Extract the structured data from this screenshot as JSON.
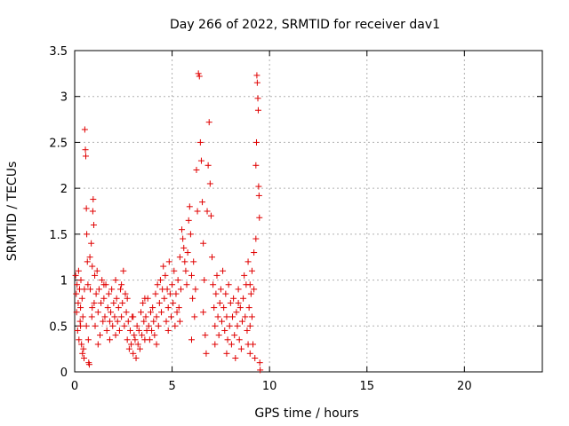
{
  "chart_data": {
    "type": "scatter",
    "title": "Day 266 of 2022, SRMTID for receiver dav1",
    "xlabel": "GPS time / hours",
    "ylabel": "SRMTID / TECUs",
    "xlim": [
      0,
      24
    ],
    "ylim": [
      0,
      3.5
    ],
    "xticks": [
      0,
      5,
      10,
      15,
      20
    ],
    "yticks": [
      0,
      0.5,
      1,
      1.5,
      2,
      2.5,
      3,
      3.5
    ],
    "xtick_labels": [
      "0",
      "5",
      "10",
      "15",
      "20"
    ],
    "ytick_labels": [
      "0",
      "0.5",
      "1",
      "1.5",
      "2",
      "2.5",
      "3",
      "3.5"
    ],
    "grid": true,
    "marker": "+",
    "color": "#e00000",
    "series": [
      {
        "name": "dav1",
        "points": [
          [
            0.05,
            1.05
          ],
          [
            0.08,
            0.85
          ],
          [
            0.1,
            0.65
          ],
          [
            0.12,
            0.95
          ],
          [
            0.15,
            0.45
          ],
          [
            0.18,
            0.75
          ],
          [
            0.2,
            1.1
          ],
          [
            0.22,
            0.35
          ],
          [
            0.25,
            0.9
          ],
          [
            0.28,
            0.55
          ],
          [
            0.3,
            0.7
          ],
          [
            0.32,
            1.0
          ],
          [
            0.35,
            0.3
          ],
          [
            0.38,
            0.8
          ],
          [
            0.4,
            0.2
          ],
          [
            0.42,
            0.6
          ],
          [
            0.45,
            0.25
          ],
          [
            0.48,
            0.15
          ],
          [
            0.5,
            0.9
          ],
          [
            0.52,
            2.64
          ],
          [
            0.55,
            2.42
          ],
          [
            0.57,
            2.35
          ],
          [
            0.6,
            1.78
          ],
          [
            0.62,
            1.5
          ],
          [
            0.65,
            1.2
          ],
          [
            0.68,
            0.95
          ],
          [
            0.7,
            0.35
          ],
          [
            0.72,
            0.1
          ],
          [
            0.75,
            0.08
          ],
          [
            0.78,
            1.25
          ],
          [
            0.8,
            0.9
          ],
          [
            0.85,
            1.4
          ],
          [
            0.88,
            0.6
          ],
          [
            0.9,
            1.15
          ],
          [
            0.93,
            1.75
          ],
          [
            0.95,
            1.88
          ],
          [
            0.98,
            1.6
          ],
          [
            1.0,
            0.75
          ],
          [
            1.03,
            1.05
          ],
          [
            1.05,
            0.5
          ],
          [
            1.1,
            0.85
          ],
          [
            1.15,
            1.1
          ],
          [
            1.2,
            0.65
          ],
          [
            1.25,
            0.9
          ],
          [
            1.3,
            0.4
          ],
          [
            1.35,
            0.75
          ],
          [
            1.4,
            1.0
          ],
          [
            1.45,
            0.55
          ],
          [
            1.5,
            0.8
          ],
          [
            1.55,
            0.6
          ],
          [
            1.6,
            0.95
          ],
          [
            1.65,
            0.45
          ],
          [
            1.7,
            0.7
          ],
          [
            1.75,
            0.85
          ],
          [
            1.8,
            0.35
          ],
          [
            1.85,
            0.65
          ],
          [
            1.9,
            0.9
          ],
          [
            1.95,
            0.5
          ],
          [
            2.0,
            0.75
          ],
          [
            2.05,
            0.6
          ],
          [
            2.1,
            0.4
          ],
          [
            2.15,
            0.8
          ],
          [
            2.2,
            0.55
          ],
          [
            2.25,
            0.7
          ],
          [
            2.3,
            0.45
          ],
          [
            2.35,
            0.9
          ],
          [
            2.4,
            0.6
          ],
          [
            2.45,
            0.75
          ],
          [
            2.5,
            1.1
          ],
          [
            2.55,
            0.5
          ],
          [
            2.6,
            0.85
          ],
          [
            2.65,
            0.65
          ],
          [
            2.7,
            0.35
          ],
          [
            2.75,
            0.55
          ],
          [
            2.8,
            0.25
          ],
          [
            2.85,
            0.45
          ],
          [
            2.9,
            0.3
          ],
          [
            2.95,
            0.6
          ],
          [
            3.0,
            0.2
          ],
          [
            3.05,
            0.4
          ],
          [
            3.1,
            0.35
          ],
          [
            3.15,
            0.15
          ],
          [
            3.2,
            0.5
          ],
          [
            3.25,
            0.3
          ],
          [
            3.3,
            0.45
          ],
          [
            3.35,
            0.25
          ],
          [
            3.4,
            0.65
          ],
          [
            3.45,
            0.4
          ],
          [
            3.5,
            0.75
          ],
          [
            3.55,
            0.55
          ],
          [
            3.6,
            0.35
          ],
          [
            3.65,
            0.6
          ],
          [
            3.7,
            0.45
          ],
          [
            3.75,
            0.8
          ],
          [
            3.8,
            0.5
          ],
          [
            3.85,
            0.35
          ],
          [
            3.9,
            0.65
          ],
          [
            3.95,
            0.45
          ],
          [
            4.0,
            0.7
          ],
          [
            4.05,
            0.55
          ],
          [
            4.1,
            0.4
          ],
          [
            4.15,
            0.85
          ],
          [
            4.2,
            0.6
          ],
          [
            4.25,
            0.95
          ],
          [
            4.3,
            0.5
          ],
          [
            4.35,
            0.75
          ],
          [
            4.4,
            1.0
          ],
          [
            4.45,
            0.65
          ],
          [
            4.5,
            0.9
          ],
          [
            4.55,
            1.15
          ],
          [
            4.6,
            0.8
          ],
          [
            4.65,
            1.05
          ],
          [
            4.7,
            0.55
          ],
          [
            4.75,
            0.9
          ],
          [
            4.8,
            0.7
          ],
          [
            4.85,
            1.2
          ],
          [
            4.9,
            0.85
          ],
          [
            4.95,
            0.6
          ],
          [
            5.0,
            0.95
          ],
          [
            5.05,
            0.75
          ],
          [
            5.1,
            1.1
          ],
          [
            5.15,
            0.5
          ],
          [
            5.2,
            0.85
          ],
          [
            5.25,
            0.65
          ],
          [
            5.3,
            1.0
          ],
          [
            5.35,
            0.7
          ],
          [
            5.4,
            1.25
          ],
          [
            5.45,
            0.9
          ],
          [
            5.5,
            1.55
          ],
          [
            5.55,
            1.45
          ],
          [
            5.6,
            1.35
          ],
          [
            5.65,
            1.2
          ],
          [
            5.7,
            1.1
          ],
          [
            5.75,
            0.95
          ],
          [
            5.8,
            1.3
          ],
          [
            5.85,
            1.65
          ],
          [
            5.9,
            1.8
          ],
          [
            5.95,
            1.5
          ],
          [
            6.0,
            1.05
          ],
          [
            6.05,
            0.8
          ],
          [
            6.1,
            1.2
          ],
          [
            6.15,
            0.6
          ],
          [
            6.2,
            0.9
          ],
          [
            6.25,
            2.2
          ],
          [
            6.3,
            1.75
          ],
          [
            6.35,
            3.25
          ],
          [
            6.4,
            3.22
          ],
          [
            6.45,
            2.5
          ],
          [
            6.5,
            2.3
          ],
          [
            6.55,
            1.85
          ],
          [
            6.6,
            1.4
          ],
          [
            6.65,
            1.0
          ],
          [
            6.7,
            0.4
          ],
          [
            6.75,
            0.2
          ],
          [
            6.8,
            1.75
          ],
          [
            6.85,
            2.25
          ],
          [
            6.9,
            2.72
          ],
          [
            6.95,
            2.05
          ],
          [
            7.0,
            1.7
          ],
          [
            7.05,
            1.25
          ],
          [
            7.1,
            0.95
          ],
          [
            7.15,
            0.7
          ],
          [
            7.2,
            0.5
          ],
          [
            7.25,
            0.85
          ],
          [
            7.3,
            1.05
          ],
          [
            7.35,
            0.6
          ],
          [
            7.4,
            0.4
          ],
          [
            7.45,
            0.75
          ],
          [
            7.5,
            0.9
          ],
          [
            7.55,
            0.55
          ],
          [
            7.6,
            1.1
          ],
          [
            7.65,
            0.7
          ],
          [
            7.7,
            0.45
          ],
          [
            7.75,
            0.85
          ],
          [
            7.8,
            0.6
          ],
          [
            7.85,
            0.35
          ],
          [
            7.9,
            0.95
          ],
          [
            7.95,
            0.5
          ],
          [
            8.0,
            0.75
          ],
          [
            8.05,
            0.3
          ],
          [
            8.1,
            0.6
          ],
          [
            8.15,
            0.8
          ],
          [
            8.2,
            0.4
          ],
          [
            8.25,
            0.15
          ],
          [
            8.3,
            0.65
          ],
          [
            8.35,
            0.5
          ],
          [
            8.4,
            0.9
          ],
          [
            8.45,
            0.35
          ],
          [
            8.5,
            0.7
          ],
          [
            8.55,
            0.25
          ],
          [
            8.6,
            0.55
          ],
          [
            8.65,
            0.8
          ],
          [
            8.7,
            1.05
          ],
          [
            8.75,
            0.6
          ],
          [
            8.8,
            0.95
          ],
          [
            8.85,
            0.45
          ],
          [
            8.9,
            1.2
          ],
          [
            8.95,
            0.7
          ],
          [
            9.0,
            0.5
          ],
          [
            9.05,
            0.85
          ],
          [
            9.1,
            1.1
          ],
          [
            9.15,
            0.3
          ],
          [
            9.2,
            0.9
          ],
          [
            9.25,
            0.15
          ],
          [
            9.3,
            2.25
          ],
          [
            9.33,
            2.5
          ],
          [
            9.35,
            3.23
          ],
          [
            9.37,
            3.15
          ],
          [
            9.4,
            2.98
          ],
          [
            9.42,
            2.85
          ],
          [
            9.44,
            2.02
          ],
          [
            9.46,
            1.92
          ],
          [
            9.48,
            1.68
          ],
          [
            9.5,
            0.1
          ],
          [
            9.52,
            0.02
          ],
          [
            9.3,
            1.45
          ],
          [
            9.2,
            1.3
          ],
          [
            9.1,
            0.6
          ],
          [
            9.0,
            0.2
          ],
          [
            8.9,
            0.3
          ],
          [
            0.6,
            0.5
          ],
          [
            1.2,
            0.3
          ],
          [
            1.8,
            0.55
          ],
          [
            2.4,
            0.95
          ],
          [
            3.0,
            0.6
          ],
          [
            3.6,
            0.8
          ],
          [
            4.2,
            0.3
          ],
          [
            4.8,
            0.45
          ],
          [
            5.4,
            0.55
          ],
          [
            6.0,
            0.35
          ],
          [
            6.6,
            0.65
          ],
          [
            7.2,
            0.3
          ],
          [
            7.8,
            0.2
          ],
          [
            8.4,
            0.75
          ],
          [
            9.0,
            0.95
          ],
          [
            0.3,
            0.5
          ],
          [
            0.9,
            0.7
          ],
          [
            1.5,
            0.95
          ],
          [
            2.1,
            1.0
          ],
          [
            2.7,
            0.8
          ]
        ]
      }
    ]
  }
}
